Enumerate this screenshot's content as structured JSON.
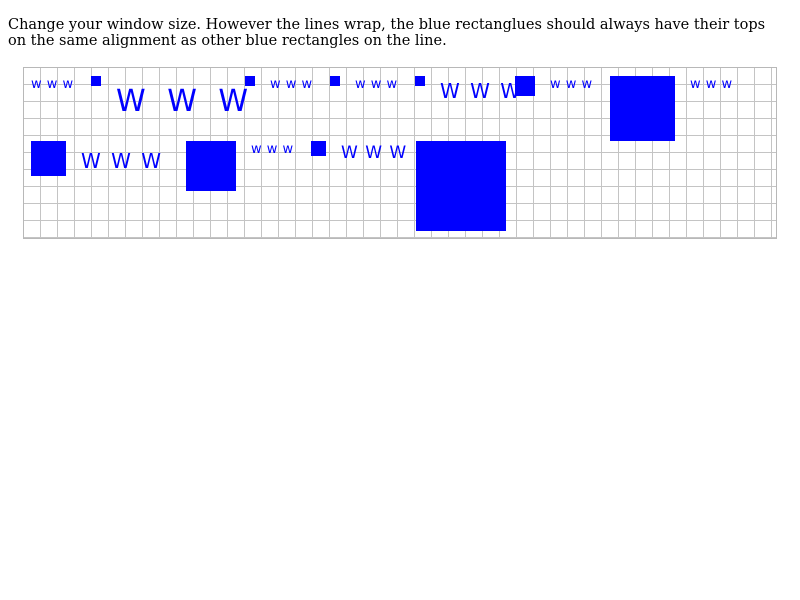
{
  "instructions": "Change your window size. However the lines wrap, the blue rectanglues should always have their tops on the same alignment as other blue rectangles on the line.",
  "www_text": "W W W",
  "www_small": "w w w",
  "colors": {
    "accent": "#0000ff",
    "grid_line": "#c4c4c4",
    "background": "#ffffff"
  }
}
